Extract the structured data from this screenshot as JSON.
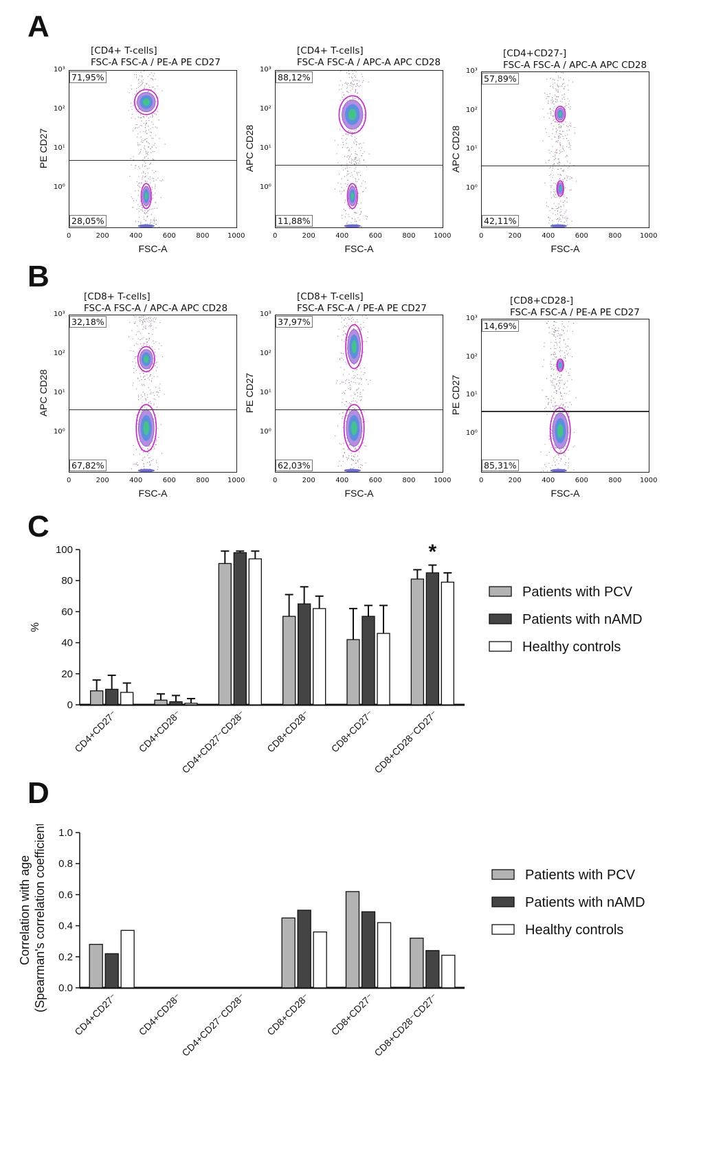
{
  "panels": {
    "A": "A",
    "B": "B",
    "C": "C",
    "D": "D"
  },
  "flow_plots": [
    {
      "gate_name": "[CD4+ T-cells]",
      "axes_desc": "FSC-A FSC-A / PE-A PE CD27",
      "ylabel": "PE CD27",
      "xlabel": "FSC-A",
      "upper_pct": "71,95%",
      "lower_pct": "28,05%",
      "gate_level": 0.57
    },
    {
      "gate_name": "[CD4+ T-cells]",
      "axes_desc": "FSC-A FSC-A / APC-A APC CD28",
      "ylabel": "APC CD28",
      "xlabel": "FSC-A",
      "upper_pct": "88,12%",
      "lower_pct": "11,88%",
      "gate_level": 0.6
    },
    {
      "gate_name": "[CD4+CD27-]",
      "axes_desc": "FSC-A FSC-A / APC-A APC CD28",
      "ylabel": "APC CD28",
      "xlabel": "FSC-A",
      "upper_pct": "57,89%",
      "lower_pct": "42,11%",
      "gate_level": 0.6
    },
    {
      "gate_name": "[CD8+ T-cells]",
      "axes_desc": "FSC-A FSC-A / APC-A APC CD28",
      "ylabel": "APC CD28",
      "xlabel": "FSC-A",
      "upper_pct": "32,18%",
      "lower_pct": "67,82%",
      "gate_level": 0.6
    },
    {
      "gate_name": "[CD8+ T-cells]",
      "axes_desc": "FSC-A FSC-A / PE-A PE CD27",
      "ylabel": "PE CD27",
      "xlabel": "FSC-A",
      "upper_pct": "37,97%",
      "lower_pct": "62,03%",
      "gate_level": 0.6
    },
    {
      "gate_name": "[CD8+CD28-]",
      "axes_desc": "FSC-A FSC-A / PE-A PE CD27",
      "ylabel": "PE CD27",
      "xlabel": "FSC-A",
      "upper_pct": "14,69%",
      "lower_pct": "85,31%",
      "gate_level": 0.6
    }
  ],
  "flow_axes": {
    "x_ticks": [
      "0",
      "200",
      "400",
      "600",
      "800",
      "1000"
    ],
    "y_ticks": [
      "10³",
      "10²",
      "10¹",
      "10⁰"
    ]
  },
  "chart_data": [
    {
      "type": "bar",
      "panel": "C",
      "categories": [
        "CD4+CD27⁻",
        "CD4+CD28⁻",
        "CD4+CD27⁻CD28⁻",
        "CD8+CD28⁻",
        "CD8+CD27⁻",
        "CD8+CD28⁻CD27⁻"
      ],
      "series": [
        {
          "name": "Patients with PCV",
          "values": [
            9,
            3,
            91,
            57,
            42,
            81
          ],
          "errors": [
            7,
            4,
            8,
            14,
            20,
            6
          ],
          "color": "#b3b3b3"
        },
        {
          "name": "Patients with nAMD",
          "values": [
            10,
            2,
            98,
            65,
            57,
            85
          ],
          "errors": [
            9,
            4,
            1,
            11,
            7,
            5
          ],
          "color": "#444444"
        },
        {
          "name": "Healthy controls",
          "values": [
            8,
            1,
            94,
            62,
            46,
            79
          ],
          "errors": [
            6,
            3,
            5,
            8,
            18,
            6
          ],
          "color": "#ffffff"
        }
      ],
      "ylabel": "%",
      "ylim": [
        0,
        100
      ],
      "yticks": [
        "0",
        "20",
        "40",
        "60",
        "80",
        "100"
      ],
      "annotation": "*"
    },
    {
      "type": "bar",
      "panel": "D",
      "categories": [
        "CD4+CD27⁻",
        "CD4+CD28⁻",
        "CD4+CD27⁻CD28⁻",
        "CD8+CD28⁻",
        "CD8+CD27⁻",
        "CD8+CD28⁻CD27⁻"
      ],
      "series": [
        {
          "name": "Patients with PCV",
          "values": [
            0.28,
            0,
            0,
            0.45,
            0.62,
            0.32
          ],
          "color": "#b3b3b3"
        },
        {
          "name": "Patients with nAMD",
          "values": [
            0.22,
            0,
            0,
            0.5,
            0.49,
            0.24
          ],
          "color": "#444444"
        },
        {
          "name": "Healthy controls",
          "values": [
            0.37,
            0,
            0,
            0.36,
            0.42,
            0.21
          ],
          "color": "#ffffff"
        }
      ],
      "ylabel_line1": "Correlation with age",
      "ylabel_line2": "(Spearman's correlation coefficient ρ)",
      "ylim": [
        0,
        1.0
      ],
      "yticks": [
        "0.0",
        "0.2",
        "0.4",
        "0.6",
        "0.8",
        "1.0"
      ]
    }
  ]
}
